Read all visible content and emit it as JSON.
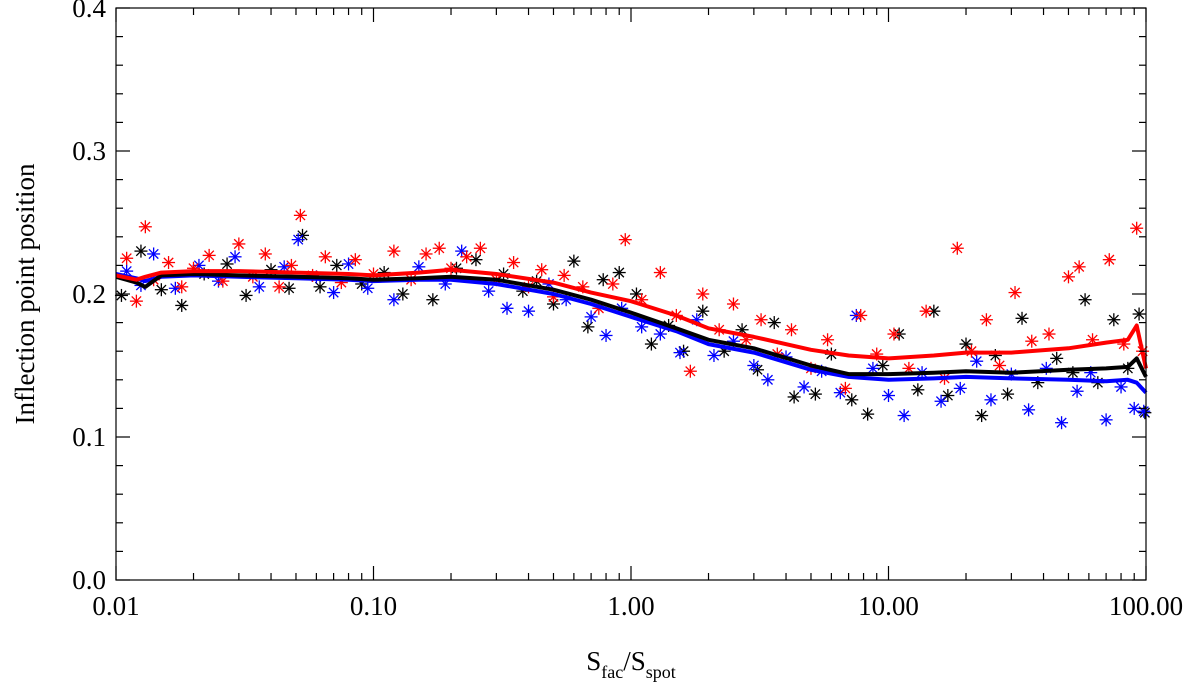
{
  "chart_data": {
    "type": "scatter",
    "x_scale": "log",
    "xlim": [
      0.01,
      100
    ],
    "ylim": [
      0.0,
      0.4
    ],
    "xlabel": {
      "main": "S",
      "sub1": "fac",
      "mid": "/S",
      "sub2": "spot"
    },
    "ylabel": "Inflection point position",
    "x_ticks": [
      "0.01",
      "0.10",
      "1.00",
      "10.00",
      "100.00"
    ],
    "x_tick_values": [
      0.01,
      0.1,
      1,
      10,
      100
    ],
    "y_ticks": [
      "0.0",
      "0.1",
      "0.2",
      "0.3",
      "0.4"
    ],
    "y_tick_values": [
      0.0,
      0.1,
      0.2,
      0.3,
      0.4
    ],
    "grid": false,
    "scatter_marker": "asterisk",
    "series": [
      {
        "color": "#ff0000",
        "mean_line": [
          [
            0.01,
            0.213
          ],
          [
            0.012,
            0.21
          ],
          [
            0.013,
            0.212
          ],
          [
            0.015,
            0.215
          ],
          [
            0.02,
            0.216
          ],
          [
            0.03,
            0.216
          ],
          [
            0.05,
            0.215
          ],
          [
            0.08,
            0.214
          ],
          [
            0.1,
            0.213
          ],
          [
            0.15,
            0.215
          ],
          [
            0.2,
            0.217
          ],
          [
            0.3,
            0.214
          ],
          [
            0.5,
            0.208
          ],
          [
            0.7,
            0.201
          ],
          [
            1.0,
            0.195
          ],
          [
            1.5,
            0.185
          ],
          [
            2.0,
            0.176
          ],
          [
            3.0,
            0.17
          ],
          [
            5.0,
            0.161
          ],
          [
            7.0,
            0.157
          ],
          [
            10.0,
            0.155
          ],
          [
            15.0,
            0.157
          ],
          [
            20.0,
            0.159
          ],
          [
            30.0,
            0.159
          ],
          [
            50.0,
            0.162
          ],
          [
            70.0,
            0.166
          ],
          [
            85.0,
            0.168
          ],
          [
            92.0,
            0.178
          ],
          [
            100.0,
            0.148
          ]
        ],
        "points": [
          [
            0.011,
            0.225
          ],
          [
            0.012,
            0.195
          ],
          [
            0.013,
            0.247
          ],
          [
            0.014,
            0.21
          ],
          [
            0.016,
            0.222
          ],
          [
            0.018,
            0.205
          ],
          [
            0.02,
            0.218
          ],
          [
            0.023,
            0.227
          ],
          [
            0.026,
            0.209
          ],
          [
            0.03,
            0.235
          ],
          [
            0.034,
            0.212
          ],
          [
            0.038,
            0.228
          ],
          [
            0.043,
            0.205
          ],
          [
            0.048,
            0.22
          ],
          [
            0.052,
            0.255
          ],
          [
            0.058,
            0.213
          ],
          [
            0.065,
            0.226
          ],
          [
            0.075,
            0.208
          ],
          [
            0.085,
            0.224
          ],
          [
            0.1,
            0.214
          ],
          [
            0.12,
            0.23
          ],
          [
            0.14,
            0.21
          ],
          [
            0.16,
            0.228
          ],
          [
            0.18,
            0.232
          ],
          [
            0.2,
            0.218
          ],
          [
            0.23,
            0.226
          ],
          [
            0.26,
            0.232
          ],
          [
            0.3,
            0.21
          ],
          [
            0.35,
            0.222
          ],
          [
            0.4,
            0.205
          ],
          [
            0.45,
            0.217
          ],
          [
            0.5,
            0.198
          ],
          [
            0.55,
            0.213
          ],
          [
            0.65,
            0.205
          ],
          [
            0.75,
            0.19
          ],
          [
            0.85,
            0.207
          ],
          [
            0.95,
            0.238
          ],
          [
            1.1,
            0.196
          ],
          [
            1.3,
            0.215
          ],
          [
            1.5,
            0.185
          ],
          [
            1.7,
            0.146
          ],
          [
            1.9,
            0.2
          ],
          [
            2.2,
            0.175
          ],
          [
            2.5,
            0.193
          ],
          [
            2.8,
            0.168
          ],
          [
            3.2,
            0.182
          ],
          [
            3.7,
            0.158
          ],
          [
            4.2,
            0.175
          ],
          [
            5.0,
            0.148
          ],
          [
            5.8,
            0.168
          ],
          [
            6.8,
            0.134
          ],
          [
            7.8,
            0.185
          ],
          [
            9.0,
            0.158
          ],
          [
            10.5,
            0.172
          ],
          [
            12.0,
            0.148
          ],
          [
            14.0,
            0.188
          ],
          [
            16.5,
            0.141
          ],
          [
            18.5,
            0.232
          ],
          [
            21.0,
            0.16
          ],
          [
            24.0,
            0.182
          ],
          [
            27.0,
            0.15
          ],
          [
            31.0,
            0.201
          ],
          [
            36.0,
            0.167
          ],
          [
            42.0,
            0.172
          ],
          [
            50.0,
            0.212
          ],
          [
            55.0,
            0.219
          ],
          [
            62.0,
            0.168
          ],
          [
            72.0,
            0.224
          ],
          [
            82.0,
            0.165
          ],
          [
            92.0,
            0.246
          ],
          [
            97.0,
            0.16
          ]
        ]
      },
      {
        "color": "#000000",
        "mean_line": [
          [
            0.01,
            0.212
          ],
          [
            0.012,
            0.208
          ],
          [
            0.013,
            0.205
          ],
          [
            0.015,
            0.213
          ],
          [
            0.02,
            0.214
          ],
          [
            0.03,
            0.213
          ],
          [
            0.05,
            0.212
          ],
          [
            0.08,
            0.211
          ],
          [
            0.1,
            0.21
          ],
          [
            0.15,
            0.211
          ],
          [
            0.2,
            0.212
          ],
          [
            0.3,
            0.21
          ],
          [
            0.5,
            0.203
          ],
          [
            0.7,
            0.196
          ],
          [
            1.0,
            0.187
          ],
          [
            1.5,
            0.176
          ],
          [
            2.0,
            0.168
          ],
          [
            3.0,
            0.162
          ],
          [
            5.0,
            0.15
          ],
          [
            7.0,
            0.144
          ],
          [
            10.0,
            0.144
          ],
          [
            15.0,
            0.145
          ],
          [
            20.0,
            0.146
          ],
          [
            30.0,
            0.145
          ],
          [
            50.0,
            0.147
          ],
          [
            70.0,
            0.148
          ],
          [
            85.0,
            0.149
          ],
          [
            92.0,
            0.155
          ],
          [
            100.0,
            0.142
          ]
        ],
        "points": [
          [
            0.0105,
            0.199
          ],
          [
            0.0125,
            0.23
          ],
          [
            0.015,
            0.203
          ],
          [
            0.018,
            0.192
          ],
          [
            0.022,
            0.214
          ],
          [
            0.027,
            0.221
          ],
          [
            0.032,
            0.199
          ],
          [
            0.04,
            0.217
          ],
          [
            0.047,
            0.204
          ],
          [
            0.053,
            0.241
          ],
          [
            0.062,
            0.205
          ],
          [
            0.072,
            0.22
          ],
          [
            0.09,
            0.207
          ],
          [
            0.11,
            0.215
          ],
          [
            0.13,
            0.2
          ],
          [
            0.17,
            0.196
          ],
          [
            0.21,
            0.218
          ],
          [
            0.25,
            0.224
          ],
          [
            0.32,
            0.214
          ],
          [
            0.38,
            0.202
          ],
          [
            0.43,
            0.209
          ],
          [
            0.5,
            0.193
          ],
          [
            0.6,
            0.223
          ],
          [
            0.68,
            0.177
          ],
          [
            0.78,
            0.21
          ],
          [
            0.9,
            0.215
          ],
          [
            1.05,
            0.2
          ],
          [
            1.2,
            0.165
          ],
          [
            1.4,
            0.178
          ],
          [
            1.6,
            0.16
          ],
          [
            1.9,
            0.188
          ],
          [
            2.3,
            0.16
          ],
          [
            2.7,
            0.175
          ],
          [
            3.1,
            0.147
          ],
          [
            3.6,
            0.18
          ],
          [
            4.3,
            0.128
          ],
          [
            5.2,
            0.13
          ],
          [
            6.0,
            0.158
          ],
          [
            7.2,
            0.126
          ],
          [
            8.3,
            0.116
          ],
          [
            9.5,
            0.15
          ],
          [
            11.0,
            0.172
          ],
          [
            13.0,
            0.133
          ],
          [
            15.0,
            0.188
          ],
          [
            17.0,
            0.129
          ],
          [
            20.0,
            0.165
          ],
          [
            23.0,
            0.115
          ],
          [
            26.0,
            0.157
          ],
          [
            29.0,
            0.13
          ],
          [
            33.0,
            0.183
          ],
          [
            38.0,
            0.138
          ],
          [
            45.0,
            0.155
          ],
          [
            52.0,
            0.145
          ],
          [
            58.0,
            0.196
          ],
          [
            65.0,
            0.138
          ],
          [
            75.0,
            0.182
          ],
          [
            85.0,
            0.148
          ],
          [
            94.0,
            0.186
          ],
          [
            99.0,
            0.117
          ]
        ]
      },
      {
        "color": "#0000ff",
        "mean_line": [
          [
            0.01,
            0.214
          ],
          [
            0.012,
            0.211
          ],
          [
            0.013,
            0.209
          ],
          [
            0.015,
            0.212
          ],
          [
            0.02,
            0.213
          ],
          [
            0.03,
            0.212
          ],
          [
            0.05,
            0.211
          ],
          [
            0.08,
            0.21
          ],
          [
            0.1,
            0.209
          ],
          [
            0.15,
            0.21
          ],
          [
            0.2,
            0.21
          ],
          [
            0.3,
            0.207
          ],
          [
            0.5,
            0.2
          ],
          [
            0.7,
            0.193
          ],
          [
            1.0,
            0.184
          ],
          [
            1.5,
            0.174
          ],
          [
            2.0,
            0.165
          ],
          [
            3.0,
            0.159
          ],
          [
            5.0,
            0.147
          ],
          [
            7.0,
            0.142
          ],
          [
            10.0,
            0.14
          ],
          [
            15.0,
            0.141
          ],
          [
            20.0,
            0.142
          ],
          [
            30.0,
            0.141
          ],
          [
            50.0,
            0.14
          ],
          [
            70.0,
            0.139
          ],
          [
            85.0,
            0.14
          ],
          [
            92.0,
            0.138
          ],
          [
            100.0,
            0.131
          ]
        ],
        "points": [
          [
            0.011,
            0.216
          ],
          [
            0.0125,
            0.206
          ],
          [
            0.014,
            0.228
          ],
          [
            0.017,
            0.204
          ],
          [
            0.021,
            0.22
          ],
          [
            0.025,
            0.209
          ],
          [
            0.029,
            0.226
          ],
          [
            0.036,
            0.205
          ],
          [
            0.045,
            0.219
          ],
          [
            0.051,
            0.238
          ],
          [
            0.06,
            0.212
          ],
          [
            0.07,
            0.201
          ],
          [
            0.08,
            0.221
          ],
          [
            0.095,
            0.204
          ],
          [
            0.12,
            0.196
          ],
          [
            0.15,
            0.219
          ],
          [
            0.19,
            0.207
          ],
          [
            0.22,
            0.23
          ],
          [
            0.28,
            0.202
          ],
          [
            0.33,
            0.19
          ],
          [
            0.4,
            0.188
          ],
          [
            0.48,
            0.207
          ],
          [
            0.56,
            0.196
          ],
          [
            0.7,
            0.184
          ],
          [
            0.8,
            0.171
          ],
          [
            0.92,
            0.19
          ],
          [
            1.1,
            0.177
          ],
          [
            1.3,
            0.172
          ],
          [
            1.55,
            0.159
          ],
          [
            1.8,
            0.182
          ],
          [
            2.1,
            0.157
          ],
          [
            2.5,
            0.167
          ],
          [
            3.0,
            0.15
          ],
          [
            3.4,
            0.14
          ],
          [
            4.0,
            0.156
          ],
          [
            4.7,
            0.135
          ],
          [
            5.5,
            0.146
          ],
          [
            6.5,
            0.131
          ],
          [
            7.5,
            0.185
          ],
          [
            8.7,
            0.148
          ],
          [
            10.0,
            0.129
          ],
          [
            11.5,
            0.115
          ],
          [
            13.5,
            0.145
          ],
          [
            16.0,
            0.125
          ],
          [
            19.0,
            0.134
          ],
          [
            22.0,
            0.153
          ],
          [
            25.0,
            0.126
          ],
          [
            30.0,
            0.144
          ],
          [
            35.0,
            0.119
          ],
          [
            41.0,
            0.148
          ],
          [
            47.0,
            0.11
          ],
          [
            54.0,
            0.132
          ],
          [
            61.0,
            0.145
          ],
          [
            70.0,
            0.112
          ],
          [
            80.0,
            0.135
          ],
          [
            90.0,
            0.12
          ],
          [
            98.0,
            0.118
          ]
        ]
      }
    ]
  }
}
